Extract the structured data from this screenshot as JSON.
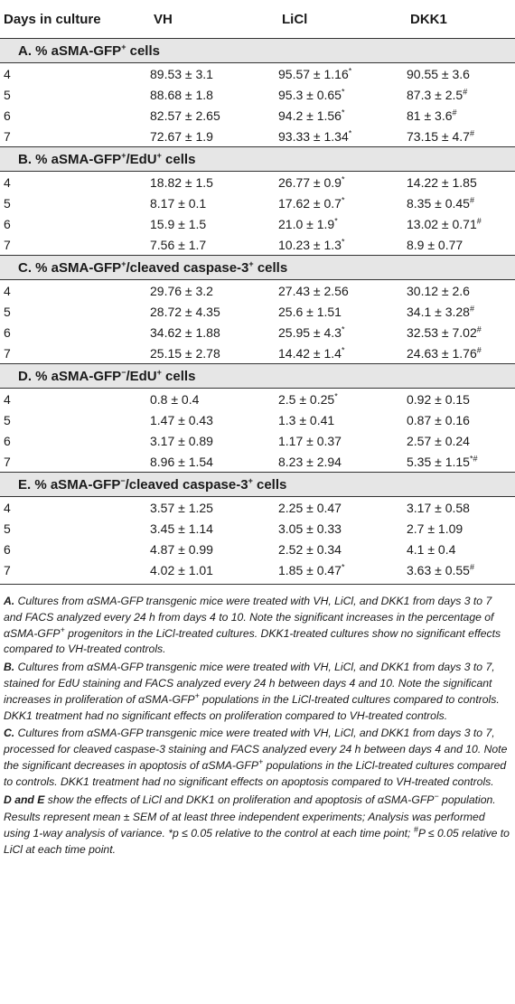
{
  "headers": [
    "Days in culture",
    "VH",
    "LiCl",
    "DKK1"
  ],
  "sections": [
    {
      "title": "A. % aSMA-GFP+ cells",
      "rows": [
        [
          "4",
          "89.53 ± 3.1",
          "95.57 ± 1.16*",
          "90.55 ± 3.6"
        ],
        [
          "5",
          "88.68 ± 1.8",
          "95.3 ± 0.65*",
          "87.3 ± 2.5#"
        ],
        [
          "6",
          "82.57 ± 2.65",
          "94.2 ± 1.56*",
          "81 ± 3.6#"
        ],
        [
          "7",
          "72.67 ± 1.9",
          "93.33 ± 1.34*",
          "73.15 ± 4.7#"
        ]
      ]
    },
    {
      "title": "B. % aSMA-GFP+/EdU+ cells",
      "rows": [
        [
          "4",
          "18.82 ± 1.5",
          "26.77 ± 0.9*",
          "14.22 ± 1.85"
        ],
        [
          "5",
          "8.17 ± 0.1",
          "17.62 ± 0.7*",
          "8.35 ± 0.45#"
        ],
        [
          "6",
          "15.9 ± 1.5",
          "21.0 ± 1.9*",
          "13.02 ± 0.71#"
        ],
        [
          "7",
          "7.56 ± 1.7",
          "10.23 ± 1.3*",
          "8.9 ± 0.77"
        ]
      ]
    },
    {
      "title": "C. % aSMA-GFP+/cleaved caspase-3+ cells",
      "rows": [
        [
          "4",
          "29.76 ± 3.2",
          "27.43 ± 2.56",
          "30.12 ± 2.6"
        ],
        [
          "5",
          "28.72 ± 4.35",
          "25.6 ± 1.51",
          "34.1 ± 3.28#"
        ],
        [
          "6",
          "34.62 ± 1.88",
          "25.95 ± 4.3*",
          "32.53 ± 7.02#"
        ],
        [
          "7",
          "25.15 ± 2.78",
          "14.42 ± 1.4*",
          "24.63 ± 1.76#"
        ]
      ]
    },
    {
      "title": "D. % aSMA-GFP−/EdU+ cells",
      "rows": [
        [
          "4",
          "0.8 ± 0.4",
          "2.5 ± 0.25*",
          "0.92 ± 0.15"
        ],
        [
          "5",
          "1.47 ± 0.43",
          "1.3 ± 0.41",
          "0.87 ± 0.16"
        ],
        [
          "6",
          "3.17 ± 0.89",
          "1.17 ± 0.37",
          "2.57 ± 0.24"
        ],
        [
          "7",
          "8.96 ± 1.54",
          "8.23 ± 2.94",
          "5.35 ± 1.15*#"
        ]
      ]
    },
    {
      "title": "E. % aSMA-GFP−/cleaved caspase-3+ cells",
      "rows": [
        [
          "4",
          "3.57 ± 1.25",
          "2.25 ± 0.47",
          "3.17 ± 0.58"
        ],
        [
          "5",
          "3.45 ± 1.14",
          "3.05 ± 0.33",
          "2.7 ± 1.09"
        ],
        [
          "6",
          "4.87 ± 0.99",
          "2.52 ± 0.34",
          "4.1 ± 0.4"
        ],
        [
          "7",
          "4.02 ± 1.01",
          "1.85 ± 0.47*",
          "3.63 ± 0.55#"
        ]
      ]
    }
  ],
  "notes": [
    {
      "lead": "A.",
      "text": " Cultures from αSMA-GFP transgenic mice were treated with VH, LiCl, and DKK1 from days 3 to 7 and FACS analyzed every 24 h from days 4 to 10. Note the significant increases in the percentage of αSMA-GFP+ progenitors in the LiCl-treated cultures. DKK1-treated cultures show no significant effects compared to VH-treated controls."
    },
    {
      "lead": "B.",
      "text": " Cultures from αSMA-GFP transgenic mice were treated with VH, LiCl, and DKK1 from days 3 to 7, stained for EdU staining and FACS analyzed every 24 h between days 4 and 10. Note the significant increases in proliferation of αSMA-GFP+ populations in the LiCl-treated cultures compared to controls. DKK1 treatment had no significant effects on proliferation compared to VH-treated controls."
    },
    {
      "lead": "C.",
      "text": " Cultures from αSMA-GFP transgenic mice were treated with VH, LiCl, and DKK1 from days 3 to 7, processed for cleaved caspase-3 staining and FACS analyzed every 24 h between days 4 and 10. Note the significant decreases in apoptosis of αSMA-GFP+ populations in the LiCl-treated cultures compared to controls. DKK1 treatment had no significant effects on apoptosis compared to VH-treated controls."
    },
    {
      "lead": "D and E",
      "text": " show the effects of LiCl and DKK1 on proliferation and apoptosis of αSMA-GFP− population."
    },
    {
      "lead": "",
      "text": "Results represent mean ± SEM of at least three independent experiments; Analysis was performed using 1-way analysis of variance. *p ≤ 0.05 relative to the control at each time point; #P ≤ 0.05 relative to LiCl at each time point."
    }
  ]
}
